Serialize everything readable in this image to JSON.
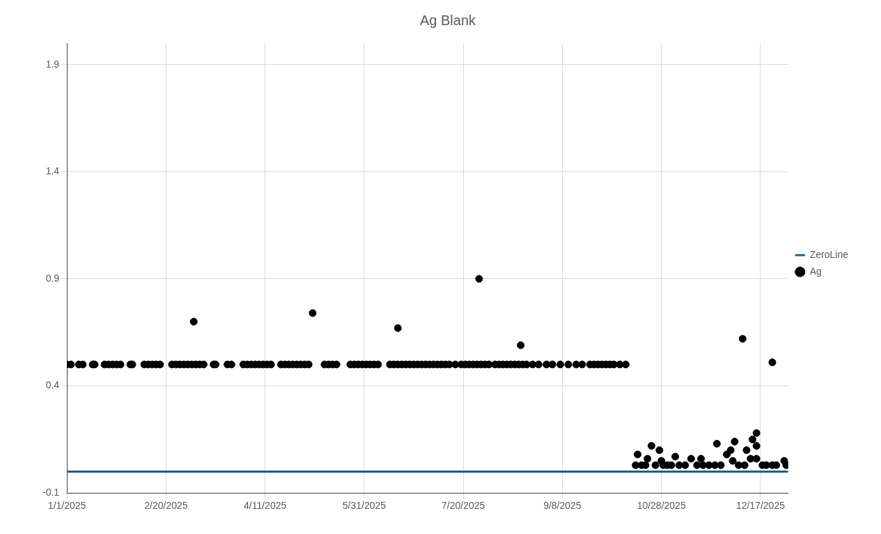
{
  "chart_data": {
    "type": "scatter",
    "title": "Ag Blank",
    "xlim": [
      "2025-01-01",
      "2025-12-31"
    ],
    "xticks": [
      {
        "value": "2025-01-01",
        "label": "1/1/2025"
      },
      {
        "value": "2025-02-20",
        "label": "2/20/2025"
      },
      {
        "value": "2025-04-11",
        "label": "4/11/2025"
      },
      {
        "value": "2025-05-31",
        "label": "5/31/2025"
      },
      {
        "value": "2025-07-20",
        "label": "7/20/2025"
      },
      {
        "value": "2025-09-08",
        "label": "9/8/2025"
      },
      {
        "value": "2025-10-28",
        "label": "10/28/2025"
      },
      {
        "value": "2025-12-17",
        "label": "12/17/2025"
      }
    ],
    "ylim": [
      -0.1,
      2.0
    ],
    "yticks": [
      -0.1,
      0.4,
      0.9,
      1.4,
      1.9
    ],
    "grid": true,
    "legend": "right",
    "series": [
      {
        "name": "ZeroLine",
        "type": "line",
        "color": "#1b5e8a",
        "marker": "none",
        "x": [
          "2025-01-01",
          "2025-12-31"
        ],
        "values": [
          0,
          0
        ]
      },
      {
        "name": "Ag",
        "color": "#000000",
        "marker": "circle",
        "x": [
          "2025-01-01",
          "2025-01-03",
          "2025-01-07",
          "2025-01-09",
          "2025-01-14",
          "2025-01-15",
          "2025-01-20",
          "2025-01-22",
          "2025-01-24",
          "2025-01-26",
          "2025-01-28",
          "2025-02-02",
          "2025-02-03",
          "2025-02-09",
          "2025-02-11",
          "2025-02-13",
          "2025-02-15",
          "2025-02-17",
          "2025-02-23",
          "2025-02-25",
          "2025-02-27",
          "2025-03-01",
          "2025-03-03",
          "2025-03-05",
          "2025-03-07",
          "2025-03-09",
          "2025-03-11",
          "2025-03-16",
          "2025-03-17",
          "2025-03-23",
          "2025-03-25",
          "2025-03-31",
          "2025-04-02",
          "2025-04-04",
          "2025-04-06",
          "2025-04-08",
          "2025-04-10",
          "2025-04-12",
          "2025-04-14",
          "2025-04-19",
          "2025-04-21",
          "2025-04-23",
          "2025-04-25",
          "2025-04-27",
          "2025-04-29",
          "2025-05-01",
          "2025-05-03",
          "2025-05-11",
          "2025-05-13",
          "2025-05-15",
          "2025-05-17",
          "2025-05-24",
          "2025-05-26",
          "2025-05-28",
          "2025-05-30",
          "2025-06-01",
          "2025-06-03",
          "2025-06-05",
          "2025-06-07",
          "2025-06-13",
          "2025-06-15",
          "2025-06-17",
          "2025-06-19",
          "2025-06-21",
          "2025-06-23",
          "2025-06-25",
          "2025-06-27",
          "2025-06-29",
          "2025-07-01",
          "2025-07-03",
          "2025-07-05",
          "2025-07-07",
          "2025-07-09",
          "2025-07-11",
          "2025-07-13",
          "2025-07-16",
          "2025-07-19",
          "2025-07-21",
          "2025-07-23",
          "2025-07-25",
          "2025-07-27",
          "2025-07-29",
          "2025-07-31",
          "2025-08-02",
          "2025-08-05",
          "2025-08-07",
          "2025-08-09",
          "2025-08-11",
          "2025-08-13",
          "2025-08-15",
          "2025-08-17",
          "2025-08-19",
          "2025-08-21",
          "2025-08-24",
          "2025-08-27",
          "2025-08-31",
          "2025-09-03",
          "2025-09-07",
          "2025-09-11",
          "2025-09-15",
          "2025-09-18",
          "2025-09-22",
          "2025-09-24",
          "2025-09-26",
          "2025-09-28",
          "2025-09-30",
          "2025-10-02",
          "2025-10-04",
          "2025-10-07",
          "2025-10-10",
          "2025-03-06",
          "2025-05-05",
          "2025-06-17",
          "2025-07-28",
          "2025-08-18",
          "2025-10-15",
          "2025-10-16",
          "2025-10-18",
          "2025-10-20",
          "2025-10-21",
          "2025-10-23",
          "2025-10-25",
          "2025-10-27",
          "2025-10-28",
          "2025-10-29",
          "2025-10-31",
          "2025-11-02",
          "2025-11-04",
          "2025-11-06",
          "2025-11-09",
          "2025-11-12",
          "2025-11-15",
          "2025-11-17",
          "2025-11-18",
          "2025-11-21",
          "2025-11-24",
          "2025-11-25",
          "2025-11-27",
          "2025-11-30",
          "2025-12-02",
          "2025-12-03",
          "2025-12-04",
          "2025-12-06",
          "2025-12-08",
          "2025-12-09",
          "2025-12-10",
          "2025-12-12",
          "2025-12-13",
          "2025-12-15",
          "2025-12-15",
          "2025-12-15",
          "2025-12-18",
          "2025-12-20",
          "2025-12-23",
          "2025-12-23",
          "2025-12-25",
          "2025-12-29",
          "2025-12-30"
        ],
        "values": [
          0.5,
          0.5,
          0.5,
          0.5,
          0.5,
          0.5,
          0.5,
          0.5,
          0.5,
          0.5,
          0.5,
          0.5,
          0.5,
          0.5,
          0.5,
          0.5,
          0.5,
          0.5,
          0.5,
          0.5,
          0.5,
          0.5,
          0.5,
          0.5,
          0.5,
          0.5,
          0.5,
          0.5,
          0.5,
          0.5,
          0.5,
          0.5,
          0.5,
          0.5,
          0.5,
          0.5,
          0.5,
          0.5,
          0.5,
          0.5,
          0.5,
          0.5,
          0.5,
          0.5,
          0.5,
          0.5,
          0.5,
          0.5,
          0.5,
          0.5,
          0.5,
          0.5,
          0.5,
          0.5,
          0.5,
          0.5,
          0.5,
          0.5,
          0.5,
          0.5,
          0.5,
          0.5,
          0.5,
          0.5,
          0.5,
          0.5,
          0.5,
          0.5,
          0.5,
          0.5,
          0.5,
          0.5,
          0.5,
          0.5,
          0.5,
          0.5,
          0.5,
          0.5,
          0.5,
          0.5,
          0.5,
          0.5,
          0.5,
          0.5,
          0.5,
          0.5,
          0.5,
          0.5,
          0.5,
          0.5,
          0.5,
          0.5,
          0.5,
          0.5,
          0.5,
          0.5,
          0.5,
          0.5,
          0.5,
          0.5,
          0.5,
          0.5,
          0.5,
          0.5,
          0.5,
          0.5,
          0.5,
          0.5,
          0.5,
          0.5,
          0.7,
          0.74,
          0.67,
          0.9,
          0.59,
          0.03,
          0.08,
          0.03,
          0.03,
          0.06,
          0.12,
          0.03,
          0.1,
          0.05,
          0.03,
          0.03,
          0.03,
          0.07,
          0.03,
          0.03,
          0.06,
          0.03,
          0.06,
          0.03,
          0.03,
          0.03,
          0.13,
          0.03,
          0.08,
          0.1,
          0.05,
          0.14,
          0.03,
          0.62,
          0.03,
          0.1,
          0.06,
          0.15,
          0.18,
          0.12,
          0.06,
          0.03,
          0.03,
          0.51,
          0.03,
          0.03,
          0.05,
          0.03
        ]
      }
    ]
  }
}
